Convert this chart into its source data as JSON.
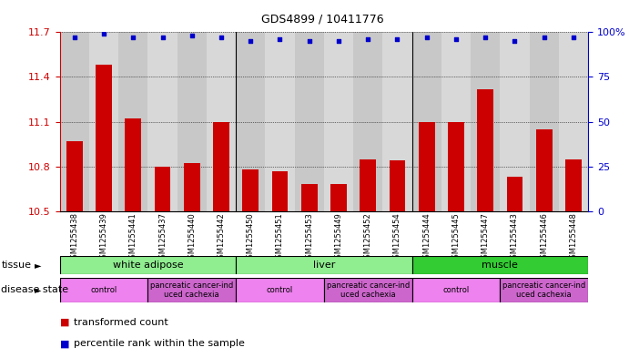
{
  "title": "GDS4899 / 10411776",
  "samples": [
    "GSM1255438",
    "GSM1255439",
    "GSM1255441",
    "GSM1255437",
    "GSM1255440",
    "GSM1255442",
    "GSM1255450",
    "GSM1255451",
    "GSM1255453",
    "GSM1255449",
    "GSM1255452",
    "GSM1255454",
    "GSM1255444",
    "GSM1255445",
    "GSM1255447",
    "GSM1255443",
    "GSM1255446",
    "GSM1255448"
  ],
  "bar_values": [
    10.97,
    11.48,
    11.12,
    10.8,
    10.82,
    11.1,
    10.78,
    10.77,
    10.68,
    10.68,
    10.85,
    10.84,
    11.1,
    11.1,
    11.32,
    10.73,
    11.05,
    10.85
  ],
  "percentile_values": [
    97,
    99,
    97,
    97,
    98,
    97,
    95,
    96,
    95,
    95,
    96,
    96,
    97,
    96,
    97,
    95,
    97,
    97
  ],
  "bar_color": "#cc0000",
  "dot_color": "#0000cc",
  "ylim_left": [
    10.5,
    11.7
  ],
  "ylim_right": [
    0,
    100
  ],
  "yticks_left": [
    10.5,
    10.8,
    11.1,
    11.4,
    11.7
  ],
  "yticks_right": [
    0,
    25,
    50,
    75,
    100
  ],
  "tissue_groups": [
    {
      "label": "white adipose",
      "start": 0,
      "end": 6,
      "color": "#90ee90"
    },
    {
      "label": "liver",
      "start": 6,
      "end": 12,
      "color": "#90ee90"
    },
    {
      "label": "muscle",
      "start": 12,
      "end": 18,
      "color": "#33cc33"
    }
  ],
  "disease_groups": [
    {
      "label": "control",
      "start": 0,
      "end": 3,
      "color": "#ee82ee"
    },
    {
      "label": "pancreatic cancer-ind\nuced cachexia",
      "start": 3,
      "end": 6,
      "color": "#cc66cc"
    },
    {
      "label": "control",
      "start": 6,
      "end": 9,
      "color": "#ee82ee"
    },
    {
      "label": "pancreatic cancer-ind\nuced cachexia",
      "start": 9,
      "end": 12,
      "color": "#cc66cc"
    },
    {
      "label": "control",
      "start": 12,
      "end": 15,
      "color": "#ee82ee"
    },
    {
      "label": "pancreatic cancer-ind\nuced cachexia",
      "start": 15,
      "end": 18,
      "color": "#cc66cc"
    }
  ],
  "col_colors": [
    "#c8c8c8",
    "#d8d8d8"
  ],
  "legend_items": [
    {
      "color": "#cc0000",
      "label": "transformed count"
    },
    {
      "color": "#0000cc",
      "label": "percentile rank within the sample"
    }
  ]
}
